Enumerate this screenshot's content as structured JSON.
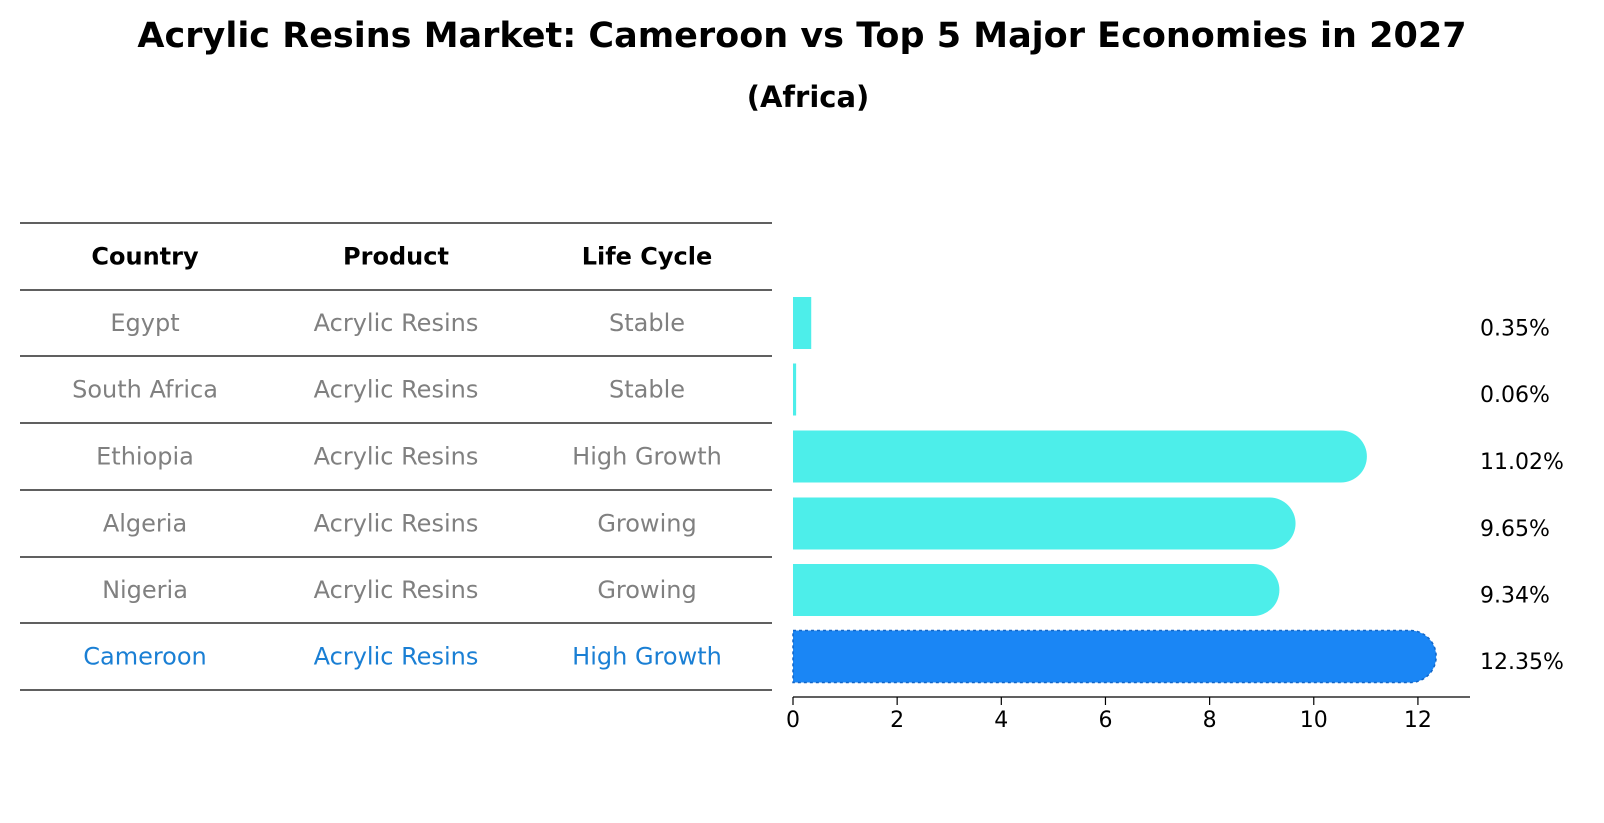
{
  "title": "Acrylic Resins Market: Cameroon vs Top 5 Major Economies in 2027",
  "subtitle": "(Africa)",
  "table": {
    "headers": [
      "Country",
      "Product",
      "Life Cycle"
    ],
    "rows": [
      [
        "Egypt",
        "Acrylic Resins",
        "Stable"
      ],
      [
        "South Africa",
        "Acrylic Resins",
        "Stable"
      ],
      [
        "Ethiopia",
        "Acrylic Resins",
        "High Growth"
      ],
      [
        "Algeria",
        "Acrylic Resins",
        "Growing"
      ],
      [
        "Nigeria",
        "Acrylic Resins",
        "Growing"
      ],
      [
        "Cameroon",
        "Acrylic Resins",
        "High Growth"
      ]
    ],
    "highlight_row": 5
  },
  "colors": {
    "bar": "#4deeea",
    "highlight": "#1a86f5",
    "muted_text": "#808080",
    "highlight_text": "#1a7fd4"
  },
  "chart_data": {
    "type": "bar",
    "orientation": "horizontal",
    "categories": [
      "Egypt",
      "South Africa",
      "Ethiopia",
      "Algeria",
      "Nigeria",
      "Cameroon"
    ],
    "values": [
      0.35,
      0.06,
      11.02,
      9.65,
      9.34,
      12.35
    ],
    "value_labels": [
      "0.35%",
      "0.06%",
      "11.02%",
      "9.65%",
      "9.34%",
      "12.35%"
    ],
    "highlight_category": "Cameroon",
    "xlim": [
      0,
      13
    ],
    "xticks": [
      0,
      2,
      4,
      6,
      8,
      10,
      12
    ],
    "grid": false
  }
}
